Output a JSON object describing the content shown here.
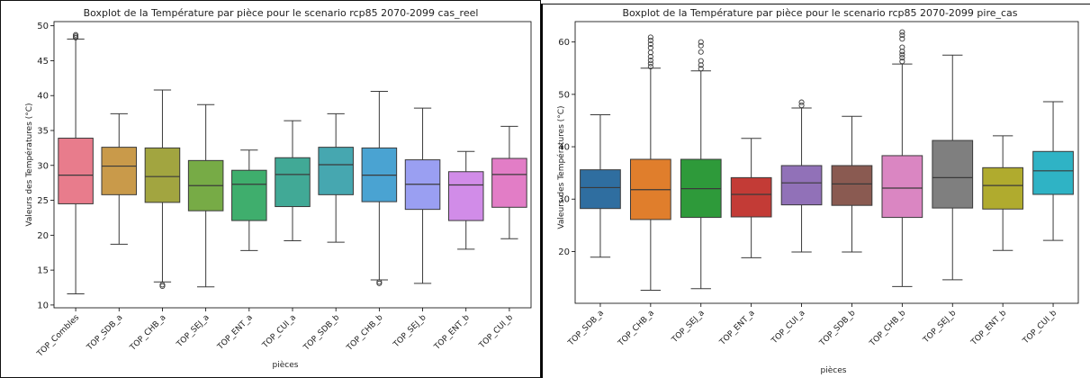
{
  "chart_data": [
    {
      "type": "box",
      "title": "Boxplot de la Température par pièce pour le scenario rcp85 2070-2099 cas_reel",
      "xlabel": "pièces",
      "ylabel": "Valeurs des Températures (°C)",
      "ylim": [
        9.6,
        50.6
      ],
      "yticks": [
        10,
        15,
        20,
        25,
        30,
        35,
        40,
        45,
        50
      ],
      "grid": false,
      "legend": "none",
      "categories": [
        "TOP_Combles",
        "TOP_SDB_a",
        "TOP_CHB_a",
        "TOP_SEJ_a",
        "TOP_ENT_a",
        "TOP_CUI_a",
        "TOP_SDB_b",
        "TOP_CHB_b",
        "TOP_SEJ_b",
        "TOP_ENT_b",
        "TOP_CUI_b"
      ],
      "colors": [
        "#e87c8c",
        "#c99a4a",
        "#a2a540",
        "#77ab46",
        "#3fae6d",
        "#41a996",
        "#46a7b0",
        "#4aa3d2",
        "#9a9ff2",
        "#d18ce8",
        "#e27dc6"
      ],
      "boxes": [
        {
          "whislo": 11.6,
          "q1": 24.5,
          "med": 28.6,
          "q3": 33.9,
          "whishi": 48.1,
          "fliers": [
            48.3,
            48.5,
            48.7
          ]
        },
        {
          "whislo": 18.7,
          "q1": 25.8,
          "med": 29.9,
          "q3": 32.6,
          "whishi": 37.4,
          "fliers": []
        },
        {
          "whislo": 13.3,
          "q1": 24.7,
          "med": 28.4,
          "q3": 32.5,
          "whishi": 40.8,
          "fliers": [
            12.7,
            12.9
          ]
        },
        {
          "whislo": 12.6,
          "q1": 23.5,
          "med": 27.1,
          "q3": 30.7,
          "whishi": 38.7,
          "fliers": []
        },
        {
          "whislo": 17.8,
          "q1": 22.1,
          "med": 27.3,
          "q3": 29.3,
          "whishi": 32.2,
          "fliers": []
        },
        {
          "whislo": 19.2,
          "q1": 24.1,
          "med": 28.7,
          "q3": 31.1,
          "whishi": 36.4,
          "fliers": []
        },
        {
          "whislo": 19.0,
          "q1": 25.8,
          "med": 30.1,
          "q3": 32.6,
          "whishi": 37.4,
          "fliers": []
        },
        {
          "whislo": 13.6,
          "q1": 24.8,
          "med": 28.6,
          "q3": 32.5,
          "whishi": 40.6,
          "fliers": [
            13.1,
            13.3
          ]
        },
        {
          "whislo": 13.1,
          "q1": 23.7,
          "med": 27.3,
          "q3": 30.8,
          "whishi": 38.2,
          "fliers": []
        },
        {
          "whislo": 18.0,
          "q1": 22.1,
          "med": 27.2,
          "q3": 29.1,
          "whishi": 32.0,
          "fliers": []
        },
        {
          "whislo": 19.5,
          "q1": 24.0,
          "med": 28.7,
          "q3": 31.0,
          "whishi": 35.6,
          "fliers": []
        }
      ]
    },
    {
      "type": "box",
      "title": "Boxplot de la Température par pièce pour le scenario rcp85 2070-2099 pire_cas",
      "xlabel": "pièces",
      "ylabel": "Valeurs des Températures (°C)",
      "ylim": [
        10.1,
        63.9
      ],
      "yticks": [
        20,
        30,
        40,
        50,
        60
      ],
      "grid": false,
      "legend": "none",
      "categories": [
        "TOP_SDB_a",
        "TOP_CHB_a",
        "TOP_SEJ_a",
        "TOP_ENT_a",
        "TOP_CUI_a",
        "TOP_SDB_b",
        "TOP_CHB_b",
        "TOP_SEJ_b",
        "TOP_ENT_b",
        "TOP_CUI_b"
      ],
      "colors": [
        "#2f6ea0",
        "#e07e2c",
        "#2e9a3a",
        "#c33b36",
        "#9171b8",
        "#8a5a51",
        "#da86c2",
        "#7f7f7f",
        "#b0ab2e",
        "#2fb3c5"
      ],
      "boxes": [
        {
          "whislo": 18.9,
          "q1": 28.2,
          "med": 32.2,
          "q3": 35.6,
          "whishi": 46.1,
          "fliers": []
        },
        {
          "whislo": 12.6,
          "q1": 26.1,
          "med": 31.8,
          "q3": 37.6,
          "whishi": 55.0,
          "fliers": [
            55.3,
            55.9,
            56.5,
            57.2,
            58.0,
            58.9,
            59.6,
            60.3,
            60.9
          ]
        },
        {
          "whislo": 12.9,
          "q1": 26.5,
          "med": 32.0,
          "q3": 37.6,
          "whishi": 54.5,
          "fliers": [
            54.9,
            55.6,
            56.4,
            58.1,
            59.3,
            60.0
          ]
        },
        {
          "whislo": 18.8,
          "q1": 26.6,
          "med": 30.9,
          "q3": 34.1,
          "whishi": 41.6,
          "fliers": []
        },
        {
          "whislo": 19.9,
          "q1": 28.9,
          "med": 33.1,
          "q3": 36.4,
          "whishi": 47.4,
          "fliers": [
            47.9,
            48.5
          ]
        },
        {
          "whislo": 19.9,
          "q1": 28.8,
          "med": 32.9,
          "q3": 36.4,
          "whishi": 45.8,
          "fliers": []
        },
        {
          "whislo": 13.3,
          "q1": 26.5,
          "med": 32.1,
          "q3": 38.3,
          "whishi": 55.8,
          "fliers": [
            56.3,
            57.0,
            57.6,
            58.2,
            59.0,
            60.6,
            61.3,
            61.9
          ]
        },
        {
          "whislo": 14.6,
          "q1": 28.3,
          "med": 34.1,
          "q3": 41.2,
          "whishi": 57.5,
          "fliers": []
        },
        {
          "whislo": 20.2,
          "q1": 28.1,
          "med": 32.6,
          "q3": 36.0,
          "whishi": 42.1,
          "fliers": []
        },
        {
          "whislo": 22.1,
          "q1": 30.9,
          "med": 35.4,
          "q3": 39.1,
          "whishi": 48.6,
          "fliers": []
        }
      ]
    }
  ]
}
